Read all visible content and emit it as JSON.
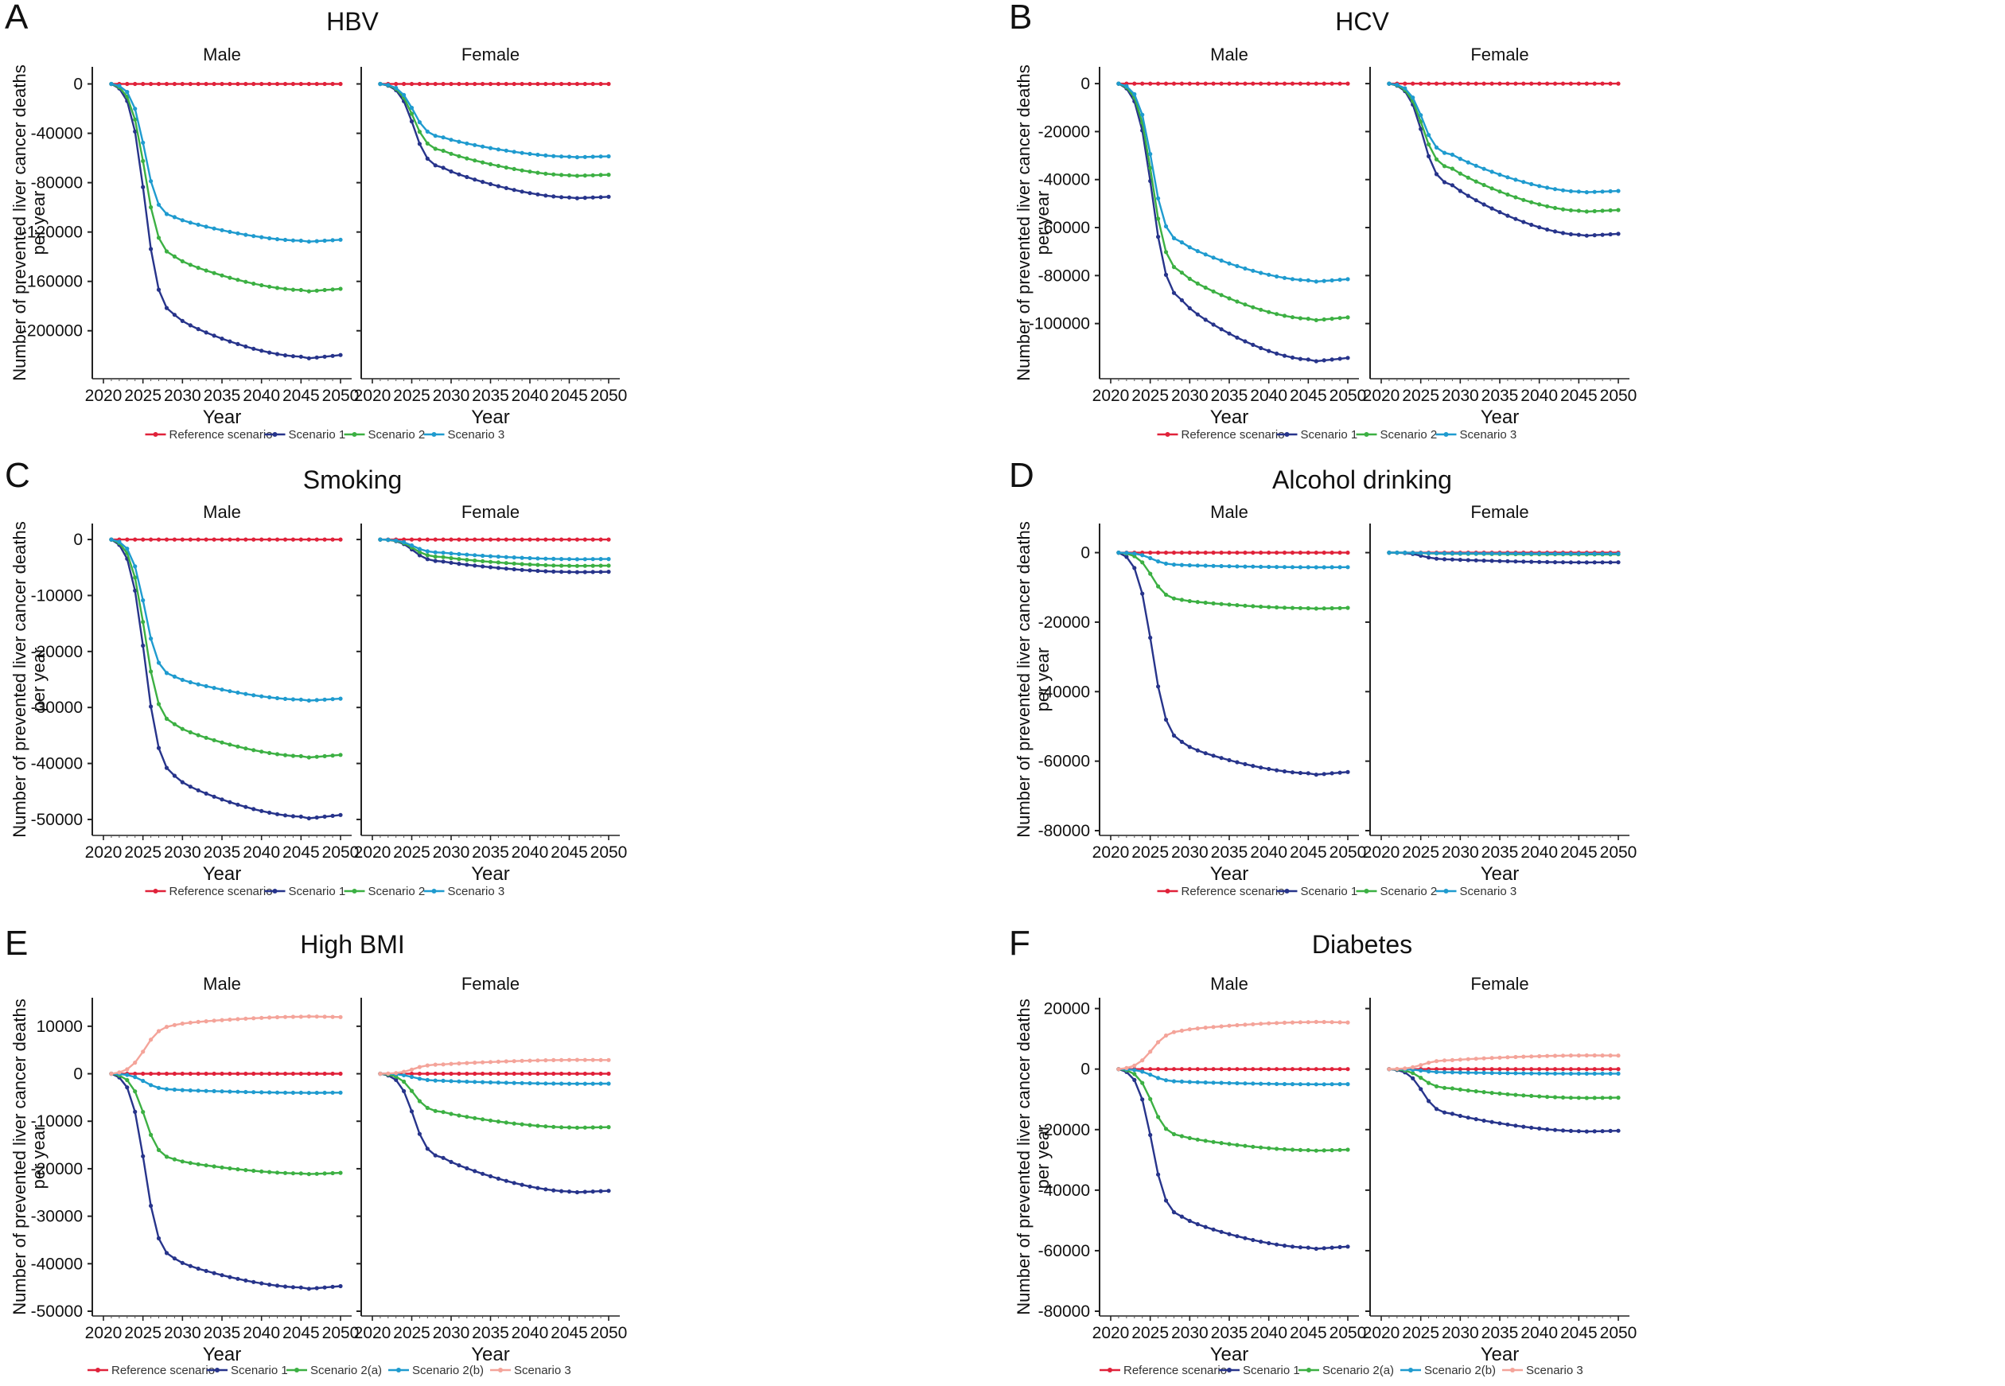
{
  "shared": {
    "ylabel_line1": "Number of prevented liver cancer deaths",
    "ylabel_line2": "per year",
    "xlabel": "Year",
    "xticks": [
      2020,
      2025,
      2030,
      2035,
      2040,
      2045,
      2050
    ],
    "facets": [
      "Male",
      "Female"
    ]
  },
  "colors": {
    "Reference scenario": "#e0223a",
    "Scenario 1": "#27348b",
    "Scenario 2": "#3cb043",
    "Scenario 3": "#1f9bcf",
    "Scenario 2(a)": "#3cb043",
    "Scenario 2(b)": "#1f9bcf",
    "Scenario 3 (BMI/Diabetes)": "#f4a49a"
  },
  "chart_data": [
    {
      "letter": "A",
      "title": "HBV",
      "type": "line",
      "xlabel": "Year",
      "ylabel": "Number of prevented liver cancer deaths per year",
      "xlim": [
        2020,
        2050
      ],
      "ylim": [
        -235000,
        10000
      ],
      "yticks": [
        0,
        -40000,
        -80000,
        -120000,
        -160000,
        -200000
      ],
      "legend": [
        "Reference scenario",
        "Scenario 1",
        "Scenario 2",
        "Scenario 3"
      ],
      "facets": [
        {
          "name": "Male",
          "series": [
            {
              "name": "Reference scenario",
              "key": "Reference scenario",
              "end": 0,
              "t": 2
            },
            {
              "name": "Scenario 1",
              "key": "Scenario 1",
              "end": -221000,
              "t": 2,
              "mid": -190000
            },
            {
              "name": "Scenario 2",
              "key": "Scenario 2",
              "end": -167000,
              "t": 2,
              "mid": -142000
            },
            {
              "name": "Scenario 3",
              "key": "Scenario 3",
              "end": -127000,
              "t": 2.2,
              "mid": -109000
            }
          ]
        },
        {
          "name": "Female",
          "series": [
            {
              "name": "Reference scenario",
              "key": "Reference scenario",
              "end": 0,
              "t": 2
            },
            {
              "name": "Scenario 1",
              "key": "Scenario 1",
              "end": -92000,
              "t": 2,
              "mid": -69000
            },
            {
              "name": "Scenario 2",
              "key": "Scenario 2",
              "end": -74000,
              "t": 2,
              "mid": -55000
            },
            {
              "name": "Scenario 3",
              "key": "Scenario 3",
              "end": -59000,
              "t": 2,
              "mid": -44000
            }
          ]
        }
      ]
    },
    {
      "letter": "B",
      "title": "HCV",
      "type": "line",
      "xlabel": "Year",
      "ylabel": "Number of prevented liver cancer deaths per year",
      "xlim": [
        2020,
        2050
      ],
      "ylim": [
        -121000,
        5000
      ],
      "yticks": [
        0,
        -20000,
        -40000,
        -60000,
        -80000,
        -100000
      ],
      "legend": [
        "Reference scenario",
        "Scenario 1",
        "Scenario 2",
        "Scenario 3"
      ],
      "facets": [
        {
          "name": "Male",
          "series": [
            {
              "name": "Reference scenario",
              "key": "Reference scenario",
              "end": 0,
              "t": 2
            },
            {
              "name": "Scenario 1",
              "key": "Scenario 1",
              "end": -115000,
              "t": 1.9,
              "mid": -92000
            },
            {
              "name": "Scenario 2",
              "key": "Scenario 2",
              "end": -98000,
              "t": 2,
              "mid": -80000
            },
            {
              "name": "Scenario 3",
              "key": "Scenario 3",
              "end": -82000,
              "t": 2.1,
              "mid": -67000
            }
          ]
        },
        {
          "name": "Female",
          "series": [
            {
              "name": "Reference scenario",
              "key": "Reference scenario",
              "end": 0,
              "t": 2
            },
            {
              "name": "Scenario 1",
              "key": "Scenario 1",
              "end": -63000,
              "t": 2,
              "mid": -43000
            },
            {
              "name": "Scenario 2",
              "key": "Scenario 2",
              "end": -53000,
              "t": 2,
              "mid": -36000
            },
            {
              "name": "Scenario 3",
              "key": "Scenario 3",
              "end": -45000,
              "t": 2.1,
              "mid": -30000
            }
          ]
        }
      ]
    },
    {
      "letter": "C",
      "title": "Smoking",
      "type": "line",
      "xlabel": "Year",
      "ylabel": "Number of prevented liver cancer deaths per year",
      "xlim": [
        2020,
        2050
      ],
      "ylim": [
        -52000,
        2000
      ],
      "yticks": [
        0,
        -10000,
        -20000,
        -30000,
        -40000,
        -50000
      ],
      "legend": [
        "Reference scenario",
        "Scenario 1",
        "Scenario 2",
        "Scenario 3"
      ],
      "facets": [
        {
          "name": "Male",
          "series": [
            {
              "name": "Reference scenario",
              "key": "Reference scenario",
              "end": 0,
              "t": 2
            },
            {
              "name": "Scenario 1",
              "key": "Scenario 1",
              "end": -49500,
              "t": 1.9,
              "mid": -43000
            },
            {
              "name": "Scenario 2",
              "key": "Scenario 2",
              "end": -38700,
              "t": 2,
              "mid": -33500
            },
            {
              "name": "Scenario 3",
              "key": "Scenario 3",
              "end": -28600,
              "t": 2.1,
              "mid": -24800
            }
          ]
        },
        {
          "name": "Female",
          "series": [
            {
              "name": "Reference scenario",
              "key": "Reference scenario",
              "end": 0,
              "t": 2
            },
            {
              "name": "Scenario 1",
              "key": "Scenario 1",
              "end": -5800,
              "t": 2,
              "mid": -4000
            },
            {
              "name": "Scenario 2",
              "key": "Scenario 2",
              "end": -4700,
              "t": 2,
              "mid": -3200
            },
            {
              "name": "Scenario 3",
              "key": "Scenario 3",
              "end": -3500,
              "t": 2,
              "mid": -2400
            }
          ]
        }
      ]
    },
    {
      "letter": "D",
      "title": "Alcohol drinking",
      "type": "line",
      "xlabel": "Year",
      "ylabel": "Number of prevented liver cancer deaths per year",
      "xlim": [
        2020,
        2050
      ],
      "ylim": [
        -80000,
        7000
      ],
      "yticks": [
        0,
        -20000,
        -40000,
        -60000,
        -80000
      ],
      "legend": [
        "Reference scenario",
        "Scenario 1",
        "Scenario 2",
        "Scenario 3"
      ],
      "facets": [
        {
          "name": "Male",
          "series": [
            {
              "name": "Reference scenario",
              "key": "Reference scenario",
              "end": 0,
              "t": 2
            },
            {
              "name": "Scenario 1",
              "key": "Scenario 1",
              "end": -63500,
              "t": 1.9,
              "mid": -55500
            },
            {
              "name": "Scenario 2",
              "key": "Scenario 2",
              "end": -16000,
              "t": 2,
              "mid": -13800
            },
            {
              "name": "Scenario 3",
              "key": "Scenario 3",
              "end": -4200,
              "t": 2,
              "mid": -3600
            }
          ]
        },
        {
          "name": "Female",
          "series": [
            {
              "name": "Reference scenario",
              "key": "Reference scenario",
              "end": 0,
              "t": 2
            },
            {
              "name": "Scenario 1",
              "key": "Scenario 1",
              "end": -2800,
              "t": 2,
              "mid": -2000
            },
            {
              "name": "Scenario 2",
              "key": "Scenario 2",
              "end": -500,
              "t": 2,
              "mid": -300
            },
            {
              "name": "Scenario 3",
              "key": "Scenario 3",
              "end": -300,
              "t": 2,
              "mid": -200
            }
          ]
        }
      ]
    },
    {
      "letter": "E",
      "title": "High BMI",
      "type": "line",
      "xlabel": "Year",
      "ylabel": "Number of prevented liver cancer deaths per year",
      "xlim": [
        2020,
        2050
      ],
      "ylim": [
        -50000,
        15000
      ],
      "yticks": [
        10000,
        0,
        -10000,
        -20000,
        -30000,
        -40000,
        -50000
      ],
      "legend": [
        "Reference scenario",
        "Scenario 1",
        "Scenario 2(a)",
        "Scenario 2(b)",
        "Scenario 3"
      ],
      "facets": [
        {
          "name": "Male",
          "series": [
            {
              "name": "Reference scenario",
              "key": "Reference scenario",
              "end": 0,
              "t": 2
            },
            {
              "name": "Scenario 1",
              "key": "Scenario 1",
              "end": -45000,
              "t": 2,
              "mid": -39500
            },
            {
              "name": "Scenario 2(a)",
              "key": "Scenario 2(a)",
              "end": -21000,
              "t": 2,
              "mid": -18300
            },
            {
              "name": "Scenario 2(b)",
              "key": "Scenario 2(b)",
              "end": -4000,
              "t": 2,
              "mid": -3400
            },
            {
              "name": "Scenario 3",
              "key": "Scenario 3 (BMI/Diabetes)",
              "end": 12000,
              "t": 1.8,
              "mid": 10500
            }
          ]
        },
        {
          "name": "Female",
          "series": [
            {
              "name": "Reference scenario",
              "key": "Reference scenario",
              "end": 0,
              "t": 2
            },
            {
              "name": "Scenario 1",
              "key": "Scenario 1",
              "end": -24800,
              "t": 2,
              "mid": -18000
            },
            {
              "name": "Scenario 2(a)",
              "key": "Scenario 2(a)",
              "end": -11300,
              "t": 2,
              "mid": -8200
            },
            {
              "name": "Scenario 2(b)",
              "key": "Scenario 2(b)",
              "end": -2100,
              "t": 2,
              "mid": -1500
            },
            {
              "name": "Scenario 3",
              "key": "Scenario 3 (BMI/Diabetes)",
              "end": 2900,
              "t": 2,
              "mid": 2000
            }
          ]
        }
      ]
    },
    {
      "letter": "F",
      "title": "Diabetes",
      "type": "line",
      "xlabel": "Year",
      "ylabel": "Number of prevented liver cancer deaths per year",
      "xlim": [
        2020,
        2050
      ],
      "ylim": [
        -80000,
        22000
      ],
      "yticks": [
        20000,
        0,
        -20000,
        -40000,
        -60000,
        -80000
      ],
      "legend": [
        "Reference scenario",
        "Scenario 1",
        "Scenario 2(a)",
        "Scenario 2(b)",
        "Scenario 3"
      ],
      "facets": [
        {
          "name": "Male",
          "series": [
            {
              "name": "Reference scenario",
              "key": "Reference scenario",
              "end": 0,
              "t": 2
            },
            {
              "name": "Scenario 1",
              "key": "Scenario 1",
              "end": -59000,
              "t": 2,
              "mid": -49500
            },
            {
              "name": "Scenario 2(a)",
              "key": "Scenario 2(a)",
              "end": -26800,
              "t": 2,
              "mid": -22500
            },
            {
              "name": "Scenario 2(b)",
              "key": "Scenario 2(b)",
              "end": -5000,
              "t": 2,
              "mid": -4200
            },
            {
              "name": "Scenario 3",
              "key": "Scenario 3 (BMI/Diabetes)",
              "end": 15500,
              "t": 1.8,
              "mid": 13000
            }
          ]
        },
        {
          "name": "Female",
          "series": [
            {
              "name": "Reference scenario",
              "key": "Reference scenario",
              "end": 0,
              "t": 2
            },
            {
              "name": "Scenario 1",
              "key": "Scenario 1",
              "end": -20500,
              "t": 2,
              "mid": -15000
            },
            {
              "name": "Scenario 2(a)",
              "key": "Scenario 2(a)",
              "end": -9500,
              "t": 2,
              "mid": -6500
            },
            {
              "name": "Scenario 2(b)",
              "key": "Scenario 2(b)",
              "end": -1500,
              "t": 2,
              "mid": -1100
            },
            {
              "name": "Scenario 3",
              "key": "Scenario 3 (BMI/Diabetes)",
              "end": 4500,
              "t": 2,
              "mid": 3000
            }
          ]
        }
      ]
    }
  ]
}
